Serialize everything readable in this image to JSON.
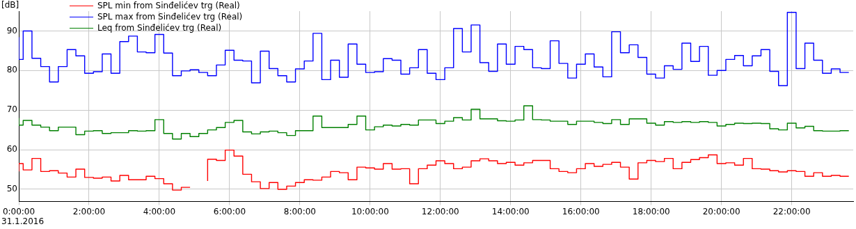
{
  "chart_data": {
    "type": "step",
    "ylabel": "[dB]",
    "annotations": [
      "31.1.2016"
    ],
    "x": [
      0,
      0.125,
      0.375,
      0.625,
      0.875,
      1.125,
      1.375,
      1.625,
      1.875,
      2.125,
      2.375,
      2.625,
      2.875,
      3.125,
      3.375,
      3.625,
      3.875,
      4.125,
      4.375,
      4.625,
      4.875,
      5.125,
      5.375,
      5.625,
      5.875,
      6.125,
      6.375,
      6.625,
      6.875,
      7.125,
      7.375,
      7.625,
      7.875,
      8.125,
      8.375,
      8.625,
      8.875,
      9.125,
      9.375,
      9.625,
      9.875,
      10.125,
      10.375,
      10.625,
      10.875,
      11.125,
      11.375,
      11.625,
      11.875,
      12.125,
      12.375,
      12.625,
      12.875,
      13.125,
      13.375,
      13.625,
      13.875,
      14.125,
      14.375,
      14.625,
      14.875,
      15.125,
      15.375,
      15.625,
      15.875,
      16.125,
      16.375,
      16.625,
      16.875,
      17.125,
      17.375,
      17.625,
      17.875,
      18.125,
      18.375,
      18.625,
      18.875,
      19.125,
      19.375,
      19.625,
      19.875,
      20.125,
      20.375,
      20.625,
      20.875,
      21.125,
      21.375,
      21.625,
      21.875,
      22.125,
      22.375,
      22.625,
      22.875,
      23.125,
      23.375,
      23.625
    ],
    "series": [
      {
        "name": "SPL min from Sinđelićev trg (Real)",
        "color": "#ff0000",
        "values": [
          54.5,
          56.5,
          54.9,
          57.8,
          54.5,
          54.7,
          54.1,
          53.1,
          55.1,
          53,
          52.8,
          53.1,
          52.1,
          53.5,
          52.4,
          52.4,
          53.3,
          52.7,
          51.4,
          49.8,
          50.5,
          null,
          52.1,
          57.6,
          57.3,
          59.9,
          58.4,
          53.8,
          51.9,
          50.2,
          51.7,
          50,
          50.8,
          51.7,
          52.4,
          52.3,
          53.1,
          54.5,
          54.2,
          52.4,
          55.6,
          55.4,
          55.1,
          56.5,
          55.1,
          55.2,
          51.4,
          55.2,
          56.1,
          57.2,
          56.5,
          55.2,
          55.6,
          57.2,
          57.7,
          57.2,
          56.5,
          56.8,
          56.1,
          56.7,
          57.3,
          57.3,
          55.2,
          54.5,
          54.2,
          55.2,
          56.5,
          55.8,
          56.3,
          56.8,
          55.6,
          52.6,
          56.7,
          57.3,
          57,
          57.8,
          55.2,
          56.8,
          57.5,
          58,
          58.7,
          56.5,
          56.7,
          56.1,
          57.8,
          55.2,
          55.1,
          54.7,
          54.4,
          54.7,
          54.5,
          53.3,
          54.2,
          53.3,
          53.5,
          53.3
        ]
      },
      {
        "name": "SPL max from Sinđelićev trg (Real)",
        "color": "#0000ff",
        "values": [
          88.4,
          82.8,
          90,
          83.1,
          81,
          77.1,
          81,
          85.3,
          83.7,
          79.3,
          79.7,
          84.2,
          79.3,
          87.3,
          88.7,
          84.7,
          84.5,
          89.1,
          84.4,
          78.7,
          79.9,
          80.2,
          79.5,
          78.7,
          81.4,
          85.1,
          82.6,
          82.4,
          76.9,
          84.9,
          80.5,
          78.7,
          77.1,
          80.4,
          82.4,
          89.4,
          77.7,
          82.6,
          78.3,
          86.7,
          81.6,
          79.5,
          79.7,
          83,
          82.6,
          79.1,
          80.7,
          85.3,
          79.3,
          77.7,
          80.7,
          90.6,
          84.7,
          91.5,
          82,
          79.8,
          86.7,
          81.6,
          86.1,
          85.3,
          80.7,
          80.5,
          87.5,
          81.8,
          78.1,
          81.6,
          84.2,
          80.9,
          78.4,
          89.8,
          84.5,
          86.5,
          83.3,
          79.1,
          78.1,
          81.2,
          80.3,
          86.9,
          82.3,
          86.1,
          78.8,
          80,
          82.8,
          83.8,
          81.2,
          83.7,
          85.3,
          79.8,
          76.2,
          94.7,
          80.5,
          86.9,
          82.6,
          79.3,
          80.4,
          79.5
        ]
      },
      {
        "name": "Leq from Sinđelićev trg (Real)",
        "color": "#008000",
        "values": [
          68,
          66.2,
          67.4,
          66.2,
          65.7,
          64.8,
          65.7,
          65.7,
          63.8,
          64.7,
          64.8,
          64.1,
          64.3,
          64.3,
          64.8,
          64.7,
          64.8,
          67.6,
          64.1,
          62.7,
          64.1,
          63.3,
          64.1,
          65,
          65.6,
          66.9,
          67.4,
          64.5,
          64,
          64.5,
          64.7,
          64.3,
          63.6,
          64.8,
          64.8,
          68.5,
          65.6,
          65.6,
          65.6,
          66.4,
          68.5,
          65,
          65.8,
          66.2,
          66,
          66.4,
          66.2,
          67.5,
          67.5,
          66.6,
          67.2,
          68.1,
          67.5,
          70.2,
          67.8,
          67.8,
          67.3,
          67.2,
          67.5,
          71.1,
          67.6,
          67.5,
          67.2,
          67.2,
          66.4,
          67.2,
          67.2,
          66.9,
          66.6,
          67.6,
          66.4,
          67.8,
          67.8,
          66.7,
          66.2,
          67.1,
          66.9,
          67.1,
          66.9,
          67.1,
          66.9,
          66,
          66.4,
          66.7,
          66.6,
          66.7,
          66.6,
          65.3,
          65,
          66.7,
          65.5,
          65.9,
          64.8,
          64.7,
          64.7,
          64.8
        ]
      }
    ],
    "xlim": [
      0,
      23.75
    ],
    "xticks": [
      {
        "value": 0,
        "label": "0:00:00"
      },
      {
        "value": 2,
        "label": "2:00:00"
      },
      {
        "value": 4,
        "label": "4:00:00"
      },
      {
        "value": 6,
        "label": "6:00:00"
      },
      {
        "value": 8,
        "label": "8:00:00"
      },
      {
        "value": 10,
        "label": "10:00:00"
      },
      {
        "value": 12,
        "label": "12:00:00"
      },
      {
        "value": 14,
        "label": "14:00:00"
      },
      {
        "value": 16,
        "label": "16:00:00"
      },
      {
        "value": 18,
        "label": "18:00:00"
      },
      {
        "value": 20,
        "label": "20:00:00"
      },
      {
        "value": 22,
        "label": "22:00:00"
      }
    ],
    "ylim": [
      46.9,
      95
    ],
    "yticks": [
      50,
      60,
      70,
      80,
      90
    ],
    "grid": true,
    "legend": "top left"
  }
}
